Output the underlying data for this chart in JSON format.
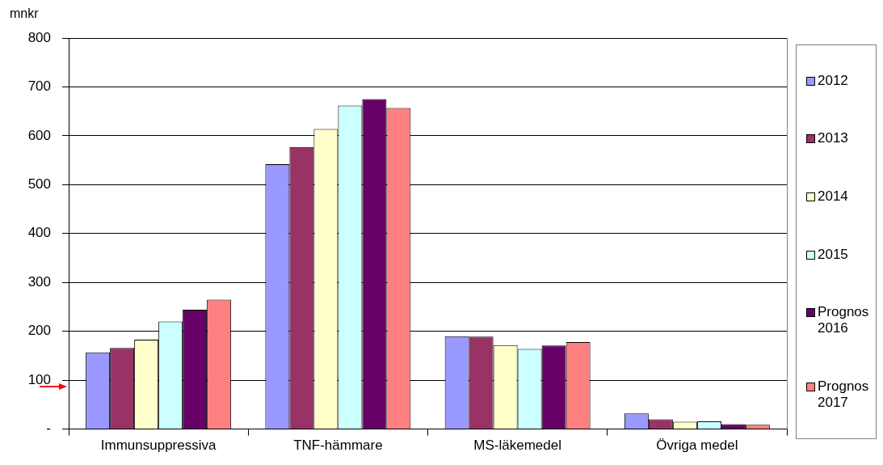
{
  "chart_data": {
    "type": "bar",
    "ylabel": "mnkr",
    "categories": [
      "Immunsuppressiva",
      "TNF-hämmare",
      "MS-läkemedel",
      "Övriga medel"
    ],
    "series": [
      {
        "name": "2012",
        "color": "#9999ff",
        "values": [
          157,
          542,
          190,
          32
        ]
      },
      {
        "name": "2013",
        "color": "#993366",
        "values": [
          166,
          577,
          189,
          20
        ]
      },
      {
        "name": "2014",
        "color": "#ffffcc",
        "values": [
          183,
          614,
          172,
          15
        ]
      },
      {
        "name": "2015",
        "color": "#ccffff",
        "values": [
          220,
          662,
          164,
          16
        ]
      },
      {
        "name": "Prognos 2016",
        "color": "#660066",
        "values": [
          244,
          675,
          171,
          10
        ]
      },
      {
        "name": "Prognos 2017",
        "color": "#ff8080",
        "values": [
          265,
          657,
          178,
          9
        ]
      }
    ],
    "ylim": [
      0,
      800
    ],
    "yticks": [
      {
        "value": 0,
        "label": "-"
      },
      100,
      200,
      300,
      400,
      500,
      600,
      700,
      800
    ],
    "grid": "y",
    "legend": "right"
  }
}
